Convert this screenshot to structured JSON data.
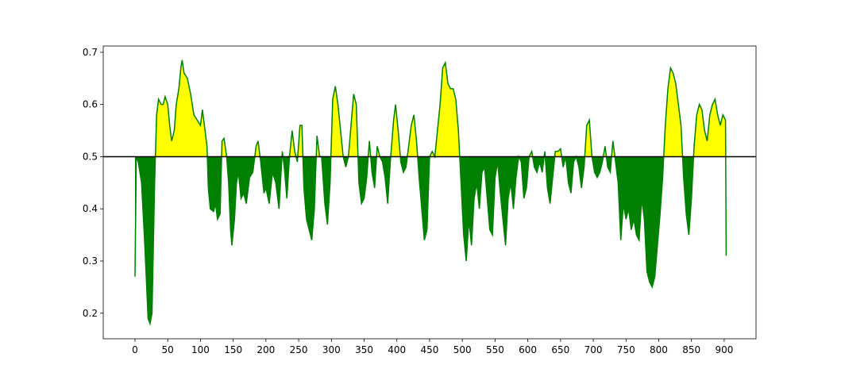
{
  "chart_data": {
    "type": "threshold-area",
    "x": [
      0,
      2,
      5,
      10,
      15,
      20,
      23,
      26,
      30,
      33,
      36,
      40,
      43,
      46,
      50,
      53,
      56,
      60,
      63,
      67,
      70,
      72,
      75,
      80,
      85,
      90,
      95,
      100,
      103,
      107,
      110,
      112,
      115,
      120,
      123,
      126,
      130,
      133,
      136,
      140,
      143,
      146,
      148,
      152,
      155,
      158,
      162,
      166,
      170,
      175,
      180,
      185,
      188,
      192,
      197,
      200,
      205,
      210,
      215,
      220,
      225,
      228,
      232,
      236,
      240,
      244,
      248,
      252,
      255,
      258,
      262,
      266,
      270,
      274,
      278,
      282,
      285,
      290,
      294,
      298,
      302,
      306,
      310,
      314,
      318,
      322,
      326,
      330,
      334,
      338,
      342,
      346,
      350,
      354,
      358,
      362,
      366,
      370,
      374,
      378,
      382,
      386,
      390,
      395,
      398,
      402,
      406,
      410,
      414,
      418,
      422,
      426,
      430,
      434,
      438,
      442,
      446,
      450,
      454,
      458,
      462,
      466,
      470,
      474,
      478,
      482,
      486,
      490,
      494,
      498,
      502,
      506,
      510,
      514,
      518,
      522,
      526,
      530,
      534,
      538,
      542,
      546,
      550,
      554,
      558,
      562,
      566,
      570,
      574,
      578,
      582,
      586,
      590,
      594,
      598,
      602,
      606,
      610,
      614,
      618,
      622,
      626,
      630,
      634,
      638,
      642,
      646,
      650,
      654,
      658,
      662,
      666,
      670,
      674,
      678,
      682,
      686,
      690,
      694,
      698,
      702,
      706,
      710,
      714,
      718,
      722,
      726,
      730,
      734,
      738,
      742,
      746,
      750,
      754,
      758,
      762,
      766,
      770,
      774,
      778,
      782,
      786,
      790,
      794,
      798,
      802,
      806,
      810,
      814,
      818,
      822,
      826,
      830,
      834,
      838,
      842,
      846,
      850,
      854,
      858,
      862,
      866,
      870,
      874,
      878,
      882,
      886,
      890,
      894,
      898,
      902,
      903
    ],
    "values": [
      0.27,
      0.5,
      0.49,
      0.45,
      0.33,
      0.19,
      0.18,
      0.2,
      0.45,
      0.58,
      0.61,
      0.6,
      0.6,
      0.615,
      0.6,
      0.56,
      0.53,
      0.55,
      0.6,
      0.63,
      0.67,
      0.685,
      0.66,
      0.65,
      0.62,
      0.58,
      0.57,
      0.56,
      0.59,
      0.55,
      0.52,
      0.44,
      0.4,
      0.395,
      0.41,
      0.38,
      0.39,
      0.53,
      0.535,
      0.5,
      0.45,
      0.36,
      0.33,
      0.38,
      0.45,
      0.47,
      0.42,
      0.43,
      0.41,
      0.46,
      0.47,
      0.52,
      0.53,
      0.49,
      0.43,
      0.44,
      0.41,
      0.47,
      0.45,
      0.4,
      0.51,
      0.48,
      0.42,
      0.5,
      0.55,
      0.51,
      0.49,
      0.56,
      0.56,
      0.44,
      0.38,
      0.36,
      0.34,
      0.4,
      0.54,
      0.5,
      0.5,
      0.41,
      0.37,
      0.45,
      0.61,
      0.635,
      0.6,
      0.55,
      0.5,
      0.48,
      0.5,
      0.56,
      0.62,
      0.6,
      0.45,
      0.41,
      0.42,
      0.46,
      0.53,
      0.47,
      0.44,
      0.52,
      0.5,
      0.49,
      0.46,
      0.41,
      0.49,
      0.57,
      0.6,
      0.55,
      0.49,
      0.47,
      0.48,
      0.52,
      0.56,
      0.58,
      0.53,
      0.46,
      0.4,
      0.34,
      0.36,
      0.5,
      0.51,
      0.5,
      0.55,
      0.6,
      0.67,
      0.68,
      0.64,
      0.63,
      0.63,
      0.61,
      0.55,
      0.45,
      0.35,
      0.3,
      0.38,
      0.33,
      0.42,
      0.45,
      0.4,
      0.47,
      0.48,
      0.42,
      0.36,
      0.35,
      0.46,
      0.49,
      0.43,
      0.38,
      0.33,
      0.42,
      0.45,
      0.4,
      0.46,
      0.5,
      0.49,
      0.42,
      0.44,
      0.5,
      0.51,
      0.48,
      0.47,
      0.49,
      0.47,
      0.51,
      0.44,
      0.41,
      0.46,
      0.51,
      0.51,
      0.515,
      0.48,
      0.5,
      0.45,
      0.43,
      0.49,
      0.5,
      0.48,
      0.44,
      0.48,
      0.56,
      0.57,
      0.5,
      0.47,
      0.46,
      0.47,
      0.49,
      0.52,
      0.48,
      0.47,
      0.53,
      0.49,
      0.45,
      0.34,
      0.41,
      0.38,
      0.4,
      0.36,
      0.38,
      0.35,
      0.34,
      0.42,
      0.38,
      0.28,
      0.26,
      0.25,
      0.27,
      0.33,
      0.39,
      0.46,
      0.56,
      0.63,
      0.67,
      0.66,
      0.64,
      0.6,
      0.56,
      0.46,
      0.39,
      0.35,
      0.42,
      0.52,
      0.58,
      0.6,
      0.59,
      0.55,
      0.53,
      0.58,
      0.6,
      0.61,
      0.58,
      0.56,
      0.58,
      0.57,
      0.31
    ],
    "color": "#008000",
    "above_color": "#ffff00",
    "below_color": "#008000",
    "threshold": 0.5,
    "xlim": [
      -48.5,
      948.6
    ],
    "ylim": [
      0.151,
      0.712
    ],
    "xticks": [
      0,
      50,
      100,
      150,
      200,
      250,
      300,
      350,
      400,
      450,
      500,
      550,
      600,
      650,
      700,
      750,
      800,
      850,
      900
    ],
    "yticks": [
      0.2,
      0.3,
      0.4,
      0.5,
      0.6,
      0.7
    ]
  }
}
